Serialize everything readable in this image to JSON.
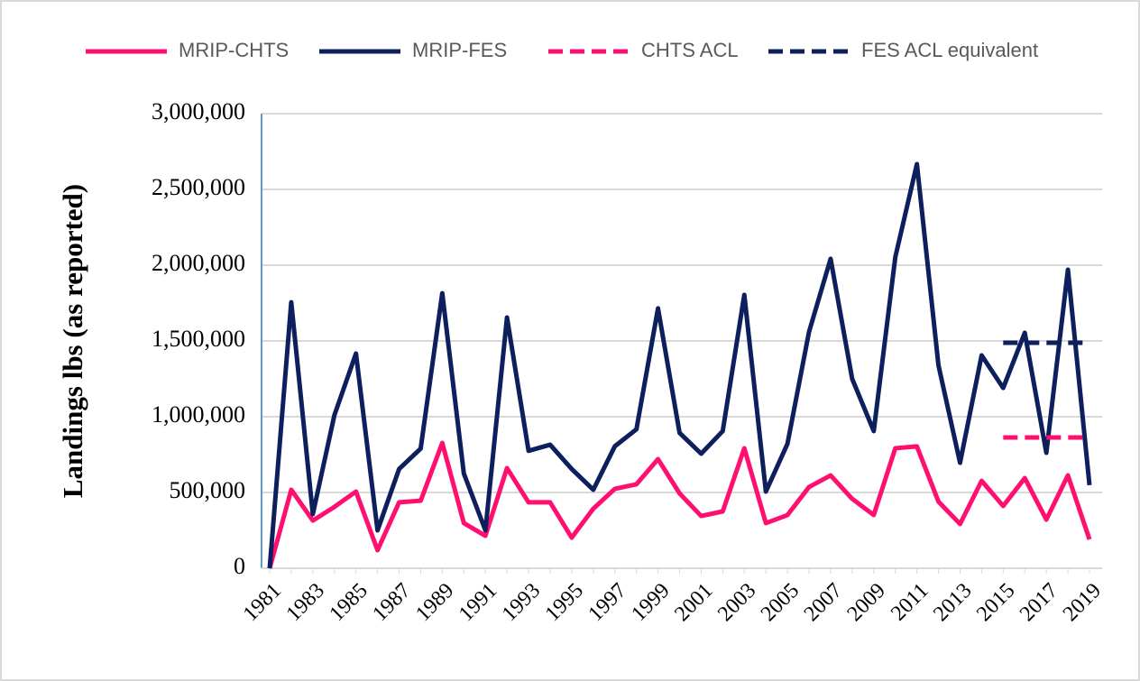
{
  "chart_data": {
    "type": "line",
    "y_label": "Landings lbs (as reported)",
    "categories": [
      "1981",
      null,
      "1983",
      null,
      "1985",
      null,
      "1987",
      null,
      "1989",
      null,
      "1991",
      null,
      "1993",
      null,
      "1995",
      null,
      "1997",
      null,
      "1999",
      null,
      "2001",
      null,
      "2003",
      null,
      "2005",
      null,
      "2007",
      null,
      "2009",
      null,
      "2011",
      null,
      "2013",
      null,
      "2015",
      null,
      "2017",
      null,
      "2019"
    ],
    "series": [
      {
        "name": "MRIP-CHTS",
        "color": "#ff0f6f",
        "style": "solid",
        "values": [
          0,
          518000,
          315000,
          405000,
          506000,
          119000,
          435000,
          446000,
          827000,
          298000,
          214000,
          661000,
          435000,
          435000,
          202000,
          393000,
          524000,
          554000,
          720000,
          494000,
          345000,
          375000,
          792000,
          298000,
          351000,
          536000,
          613000,
          458000,
          351000,
          792000,
          804000,
          440000,
          292000,
          577000,
          411000,
          595000,
          321000,
          613000,
          190000
        ]
      },
      {
        "name": "MRIP-FES",
        "color": "#0d1f5c",
        "style": "solid",
        "values": [
          0,
          1755000,
          357000,
          1010000,
          1417000,
          250000,
          655000,
          790000,
          1815000,
          625000,
          250000,
          1655000,
          775000,
          815000,
          655000,
          518000,
          805000,
          917000,
          1715000,
          893000,
          756000,
          905000,
          1804000,
          506000,
          821000,
          1560000,
          2042000,
          1250000,
          905000,
          2054000,
          2667000,
          1339000,
          696000,
          1405000,
          1190000,
          1554000,
          762000,
          1970000,
          548000
        ]
      },
      {
        "name": "CHTS ACL",
        "color": "#ff0f6f",
        "style": "dashed",
        "values": [
          null,
          null,
          null,
          null,
          null,
          null,
          null,
          null,
          null,
          null,
          null,
          null,
          null,
          null,
          null,
          null,
          null,
          null,
          null,
          null,
          null,
          null,
          null,
          null,
          null,
          null,
          null,
          null,
          null,
          null,
          null,
          null,
          null,
          null,
          863000,
          863000,
          863000,
          863000,
          863000
        ]
      },
      {
        "name": "FES ACL equivalent",
        "color": "#0d1f5c",
        "style": "dashed",
        "values": [
          null,
          null,
          null,
          null,
          null,
          null,
          null,
          null,
          null,
          null,
          null,
          null,
          null,
          null,
          null,
          null,
          null,
          null,
          null,
          null,
          null,
          null,
          null,
          null,
          null,
          null,
          null,
          null,
          null,
          null,
          null,
          null,
          null,
          null,
          1488000,
          1488000,
          1488000,
          1488000,
          1488000
        ]
      }
    ],
    "ylim": [
      0,
      3000000
    ],
    "yticks": [
      0,
      {
        "value": 500000,
        "label": "500,000"
      },
      {
        "value": 1000000,
        "label": "1,000,000"
      },
      {
        "value": 1500000,
        "label": "1,500,000"
      },
      {
        "value": 2000000,
        "label": "2,000,000"
      },
      {
        "value": 2500000,
        "label": "2,500,000"
      },
      {
        "value": 3000000,
        "label": "3,000,000"
      }
    ],
    "grid": true,
    "legend": "top"
  }
}
